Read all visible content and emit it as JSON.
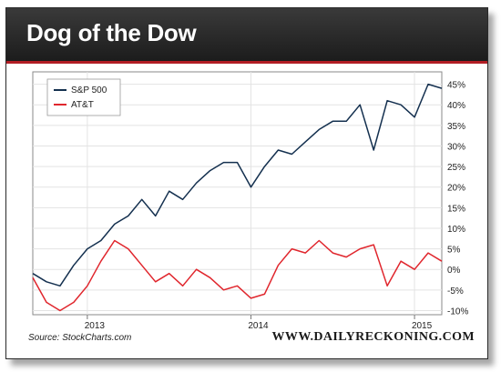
{
  "header": {
    "title": "Dog of the Dow"
  },
  "footer": {
    "source": "Source: StockCharts.com",
    "brand": "WWW.DAILYRECKONING.COM"
  },
  "colors": {
    "header_bg": "#262626",
    "accent_red": "#b21d24",
    "sp500": "#14304f",
    "att": "#e0262d"
  },
  "chart_data": {
    "type": "line",
    "title": "Dog of the Dow",
    "xlabel": "",
    "ylabel": "",
    "x_ticks": [
      "2013",
      "2014",
      "2015"
    ],
    "x_range": [
      "2012-09",
      "2015-03"
    ],
    "y_ticks": [
      "45%",
      "40%",
      "35%",
      "30%",
      "25%",
      "20%",
      "15%",
      "10%",
      "5%",
      "0%",
      "-5%",
      "-10%"
    ],
    "ylim": [
      -11,
      48
    ],
    "grid": true,
    "legend_position": "top-left",
    "series": [
      {
        "name": "S&P 500",
        "x": [
          "2012-09",
          "2012-10",
          "2012-11",
          "2012-12",
          "2013-01",
          "2013-02",
          "2013-03",
          "2013-04",
          "2013-05",
          "2013-06",
          "2013-07",
          "2013-08",
          "2013-09",
          "2013-10",
          "2013-11",
          "2013-12",
          "2014-01",
          "2014-02",
          "2014-03",
          "2014-04",
          "2014-05",
          "2014-06",
          "2014-07",
          "2014-08",
          "2014-09",
          "2014-10",
          "2014-11",
          "2014-12",
          "2015-01",
          "2015-02",
          "2015-03"
        ],
        "values": [
          -1,
          -3,
          -4,
          1,
          5,
          7,
          11,
          13,
          17,
          13,
          19,
          17,
          21,
          24,
          26,
          26,
          20,
          25,
          29,
          28,
          31,
          34,
          36,
          36,
          40,
          29,
          41,
          40,
          37,
          45,
          44
        ]
      },
      {
        "name": "AT&T",
        "x": [
          "2012-09",
          "2012-10",
          "2012-11",
          "2012-12",
          "2013-01",
          "2013-02",
          "2013-03",
          "2013-04",
          "2013-05",
          "2013-06",
          "2013-07",
          "2013-08",
          "2013-09",
          "2013-10",
          "2013-11",
          "2013-12",
          "2014-01",
          "2014-02",
          "2014-03",
          "2014-04",
          "2014-05",
          "2014-06",
          "2014-07",
          "2014-08",
          "2014-09",
          "2014-10",
          "2014-11",
          "2014-12",
          "2015-01",
          "2015-02",
          "2015-03"
        ],
        "values": [
          -2,
          -8,
          -10,
          -8,
          -4,
          2,
          7,
          5,
          1,
          -3,
          -1,
          -4,
          0,
          -2,
          -5,
          -4,
          -7,
          -6,
          1,
          5,
          4,
          7,
          4,
          3,
          5,
          6,
          -4,
          2,
          0,
          4,
          2
        ]
      }
    ]
  }
}
